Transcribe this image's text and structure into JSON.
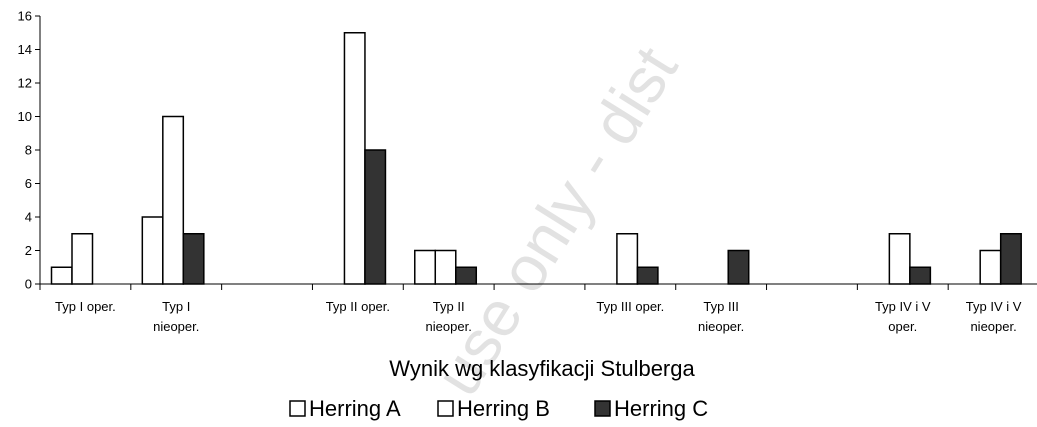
{
  "chart_data": {
    "type": "bar",
    "xlabel": "Wynik wg klasyfikacji Stulberga",
    "ylabel": "",
    "ylim": [
      0,
      16
    ],
    "yticks": [
      0,
      2,
      4,
      6,
      8,
      10,
      12,
      14,
      16
    ],
    "grid": false,
    "legend_position": "bottom",
    "categories": [
      [
        "Typ I oper."
      ],
      [
        "Typ I",
        "nieoper."
      ],
      [
        "Typ II oper."
      ],
      [
        "Typ II",
        "nieoper."
      ],
      [
        "Typ III oper."
      ],
      [
        "Typ III",
        "nieoper."
      ],
      [
        "Typ IV i V",
        "oper."
      ],
      [
        "Typ IV i V",
        "nieoper."
      ]
    ],
    "series": [
      {
        "name": "Herring A",
        "color": "#ffffff",
        "values": [
          1,
          4,
          0,
          2,
          0,
          0,
          0,
          0
        ]
      },
      {
        "name": "Herring B",
        "color": "#ffffff",
        "values": [
          3,
          10,
          15,
          2,
          3,
          0,
          3,
          2
        ]
      },
      {
        "name": "Herring C",
        "color": "#333333",
        "values": [
          0,
          3,
          8,
          1,
          1,
          2,
          1,
          3
        ]
      }
    ]
  },
  "watermark": "use only - dist"
}
